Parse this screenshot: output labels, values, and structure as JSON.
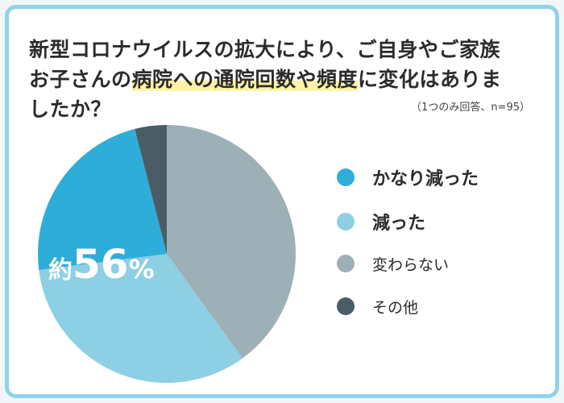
{
  "title": {
    "line1": "新型コロナウイルスの拡大により、ご自身やご家族",
    "line2_pre": "お子さんの",
    "line2_highlight": "病院への通院回数や頻度",
    "line2_post": "に変化はありま",
    "line3": "したか？"
  },
  "note": "（1つのみ回答、n=95）",
  "callout": {
    "prefix": "約",
    "number": "56",
    "unit": "%"
  },
  "chart_data": {
    "type": "pie",
    "slices": [
      {
        "label": "変わらない",
        "value": 40,
        "color": "#9db0b7"
      },
      {
        "label": "減った",
        "value": 33,
        "color": "#8dcfe3"
      },
      {
        "label": "かなり減った",
        "value": 23,
        "color": "#2fadd9"
      },
      {
        "label": "その他",
        "value": 4,
        "color": "#4a5d66"
      }
    ],
    "start": "12 o'clock",
    "direction": "clockwise"
  },
  "legend": [
    {
      "label": "かなり減った",
      "color": "#2fadd9",
      "weight": "bold"
    },
    {
      "label": "減った",
      "color": "#8dcfe3",
      "weight": "bold"
    },
    {
      "label": "変わらない",
      "color": "#9db0b7",
      "weight": "normal"
    },
    {
      "label": "その他",
      "color": "#4a5d66",
      "weight": "normal"
    }
  ]
}
